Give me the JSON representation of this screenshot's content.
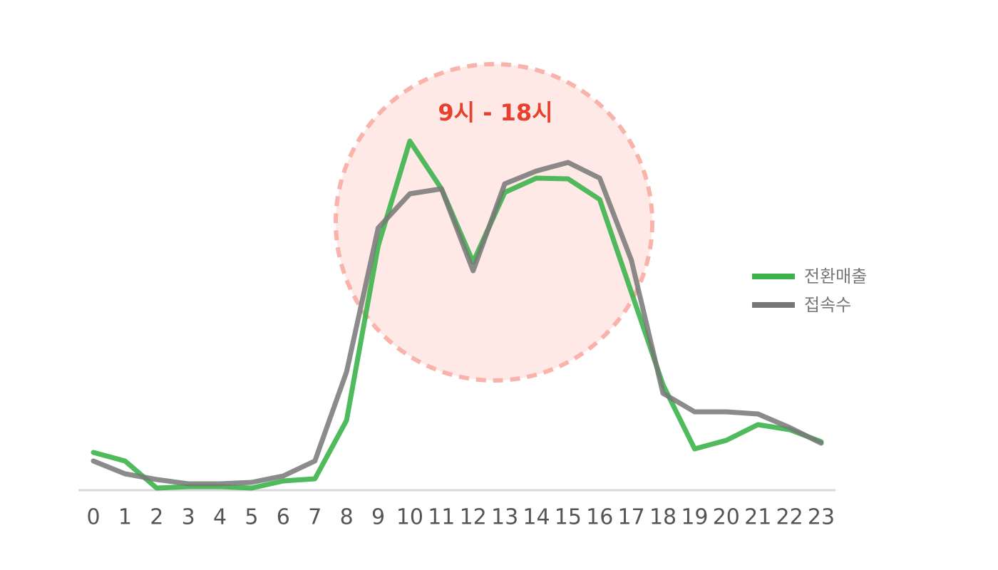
{
  "chart_data": {
    "type": "line",
    "annotation": "9시 - 18시",
    "categories": [
      "0",
      "1",
      "2",
      "3",
      "4",
      "5",
      "6",
      "7",
      "8",
      "9",
      "10",
      "11",
      "12",
      "13",
      "14",
      "15",
      "16",
      "17",
      "18",
      "19",
      "20",
      "21",
      "22",
      "23"
    ],
    "series": [
      {
        "name": "전환매출",
        "color": "#3cb44b",
        "values": [
          10.6,
          8.2,
          0.6,
          1,
          1,
          0.6,
          2.6,
          3.2,
          19.6,
          68.6,
          98,
          84.6,
          64,
          83.6,
          87.6,
          87.4,
          81.6,
          55.6,
          29.6,
          11.6,
          14,
          18.4,
          17,
          13.6
        ]
      },
      {
        "name": "접속수",
        "color": "#777777",
        "values": [
          8.2,
          4.6,
          3,
          1.8,
          1.8,
          2.2,
          4,
          8.2,
          33.2,
          73.6,
          83.2,
          84.6,
          61.6,
          86,
          89.6,
          92,
          87.6,
          64.6,
          27.2,
          22,
          22,
          21.4,
          17.6,
          13.2
        ]
      }
    ],
    "ylim": [
      0,
      100
    ],
    "legend": "right"
  }
}
